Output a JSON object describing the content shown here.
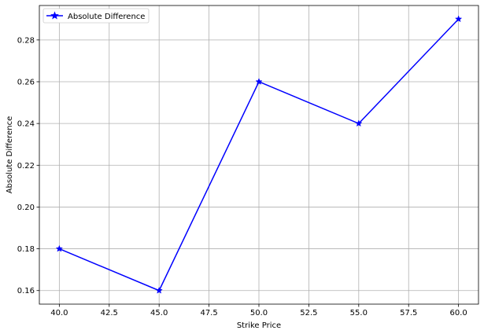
{
  "chart_data": {
    "type": "line",
    "title": "",
    "xlabel": "Strike Price",
    "ylabel": "Absolute Difference",
    "xlim": [
      39.0,
      61.0
    ],
    "ylim": [
      0.1535,
      0.2965
    ],
    "x_ticks": [
      40.0,
      42.5,
      45.0,
      47.5,
      50.0,
      52.5,
      55.0,
      57.5,
      60.0
    ],
    "x_tick_labels": [
      "40.0",
      "42.5",
      "45.0",
      "47.5",
      "50.0",
      "52.5",
      "55.0",
      "57.5",
      "60.0"
    ],
    "y_ticks": [
      0.16,
      0.18,
      0.2,
      0.22,
      0.24,
      0.26,
      0.28
    ],
    "y_tick_labels": [
      "0.16",
      "0.18",
      "0.20",
      "0.22",
      "0.24",
      "0.26",
      "0.28"
    ],
    "grid": true,
    "legend_position": "top-left",
    "series": [
      {
        "name": "Absolute Difference",
        "color": "#0000ff",
        "marker": "star",
        "x": [
          40,
          45,
          50,
          55,
          60
        ],
        "y": [
          0.18,
          0.16,
          0.26,
          0.24,
          0.29
        ]
      }
    ]
  }
}
